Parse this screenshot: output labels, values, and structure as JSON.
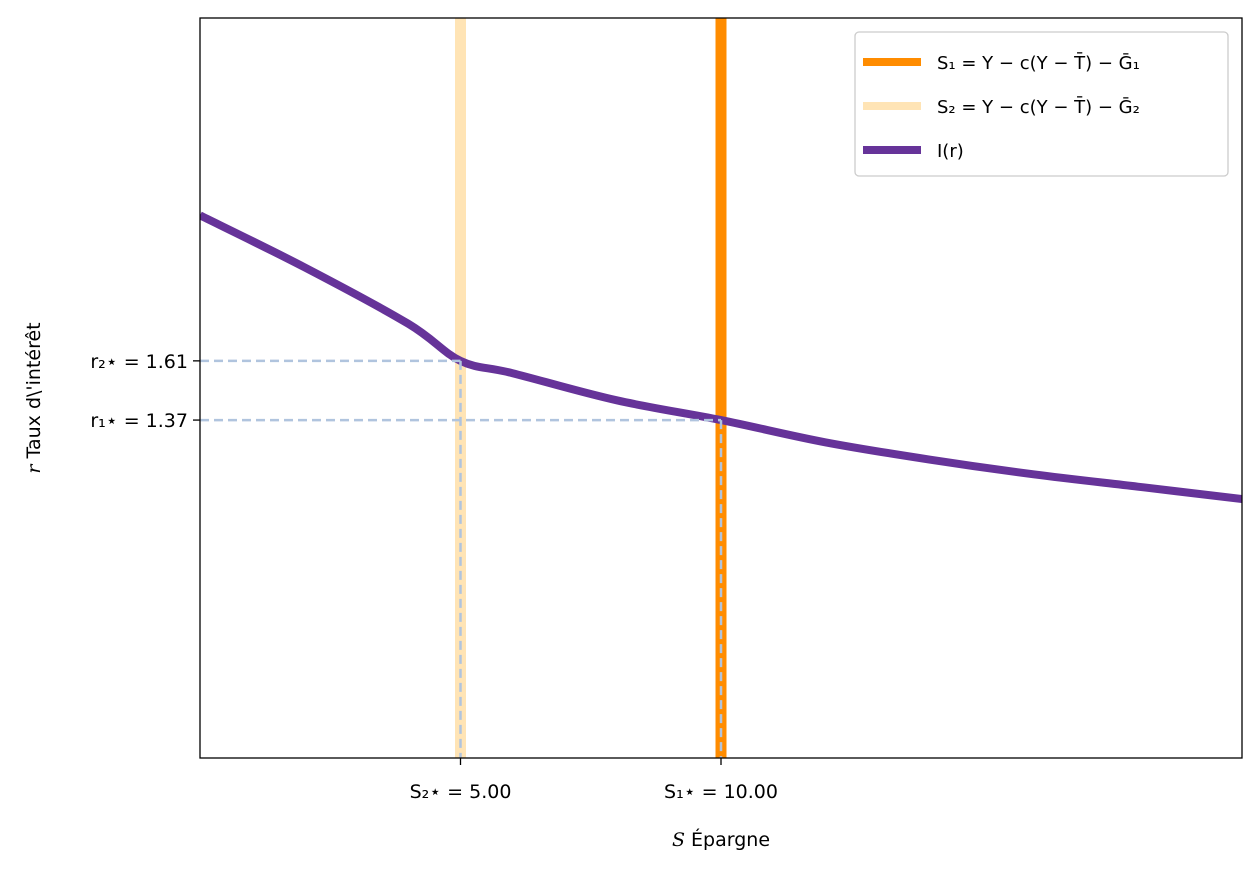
{
  "chart_data": {
    "type": "line",
    "title": "",
    "xlabel": {
      "symbol": "S",
      "text": " Épargne"
    },
    "ylabel": {
      "symbol": "r",
      "text": " Taux d\\'intérêt"
    },
    "xlim": [
      0,
      20
    ],
    "ylim": [
      0,
      3.0
    ],
    "grid": false,
    "legend_position": "top-right",
    "series": [
      {
        "key": "S1",
        "name": "S₁ = Y − c(Y − T̄) − Ḡ₁",
        "kind": "vertical",
        "x": 10,
        "color": "#ff8c00"
      },
      {
        "key": "S2",
        "name": "S₂ = Y − c(Y − T̄) − Ḡ₂",
        "kind": "vertical",
        "x": 5,
        "color": "#ffe4b5"
      },
      {
        "key": "I",
        "name": "I(r)",
        "kind": "curve",
        "color": "#663399",
        "x": [
          0,
          2,
          4,
          5,
          6,
          8,
          10,
          12,
          14,
          16,
          18,
          20
        ],
        "y": [
          2.2,
          1.99,
          1.76,
          1.61,
          1.56,
          1.45,
          1.37,
          1.28,
          1.21,
          1.15,
          1.1,
          1.05
        ]
      }
    ],
    "equilibria": [
      {
        "x": 5,
        "y": 1.61,
        "x_label": "S₂⋆ = 5.00",
        "y_label": "r₂⋆ = 1.61"
      },
      {
        "x": 10,
        "y": 1.37,
        "x_label": "S₁⋆ = 10.00",
        "y_label": "r₁⋆ = 1.37"
      }
    ],
    "guide_color": "#b0c4de"
  }
}
